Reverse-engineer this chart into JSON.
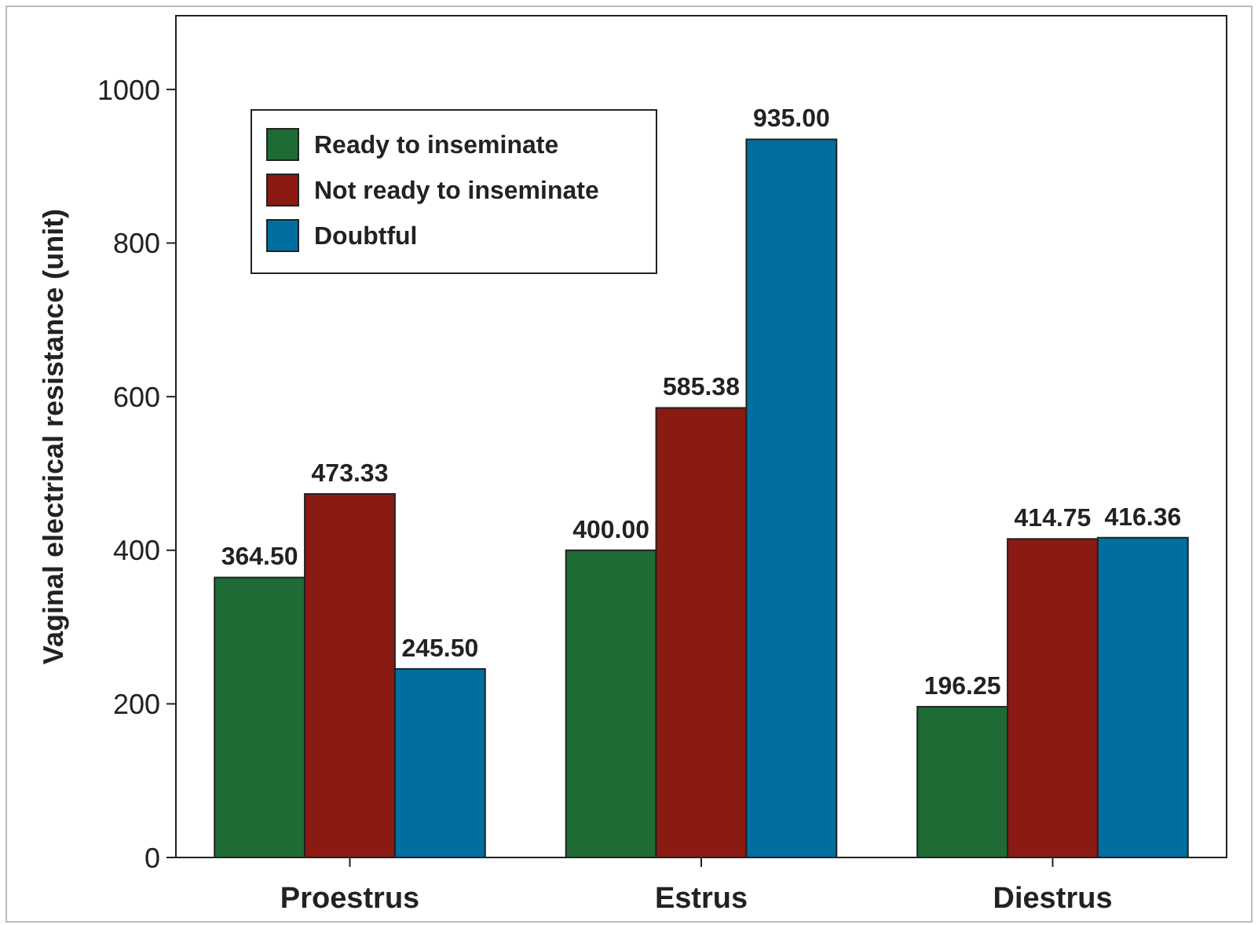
{
  "chart_data": {
    "type": "bar",
    "ylabel": "Vaginal electrical resistance (unit)",
    "categories": [
      "Proestrus",
      "Estrus",
      "Diestrus"
    ],
    "series": [
      {
        "name": "Ready to inseminate",
        "color": "#1e6b35",
        "values": [
          364.5,
          400.0,
          196.25
        ],
        "value_labels": [
          "364.50",
          "400.00",
          "196.25"
        ]
      },
      {
        "name": "Not ready to inseminate",
        "color": "#8b1a13",
        "values": [
          473.33,
          585.38,
          414.75
        ],
        "value_labels": [
          "473.33",
          "585.38",
          "414.75"
        ]
      },
      {
        "name": "Doubtful",
        "color": "#006fa0",
        "values": [
          245.5,
          935.0,
          416.36
        ],
        "value_labels": [
          "245.50",
          "935.00",
          "416.36"
        ]
      }
    ],
    "ylim": [
      0,
      1096
    ],
    "yticks": [
      0,
      200,
      400,
      600,
      800,
      1000
    ],
    "grid": false,
    "legend": "top left"
  }
}
